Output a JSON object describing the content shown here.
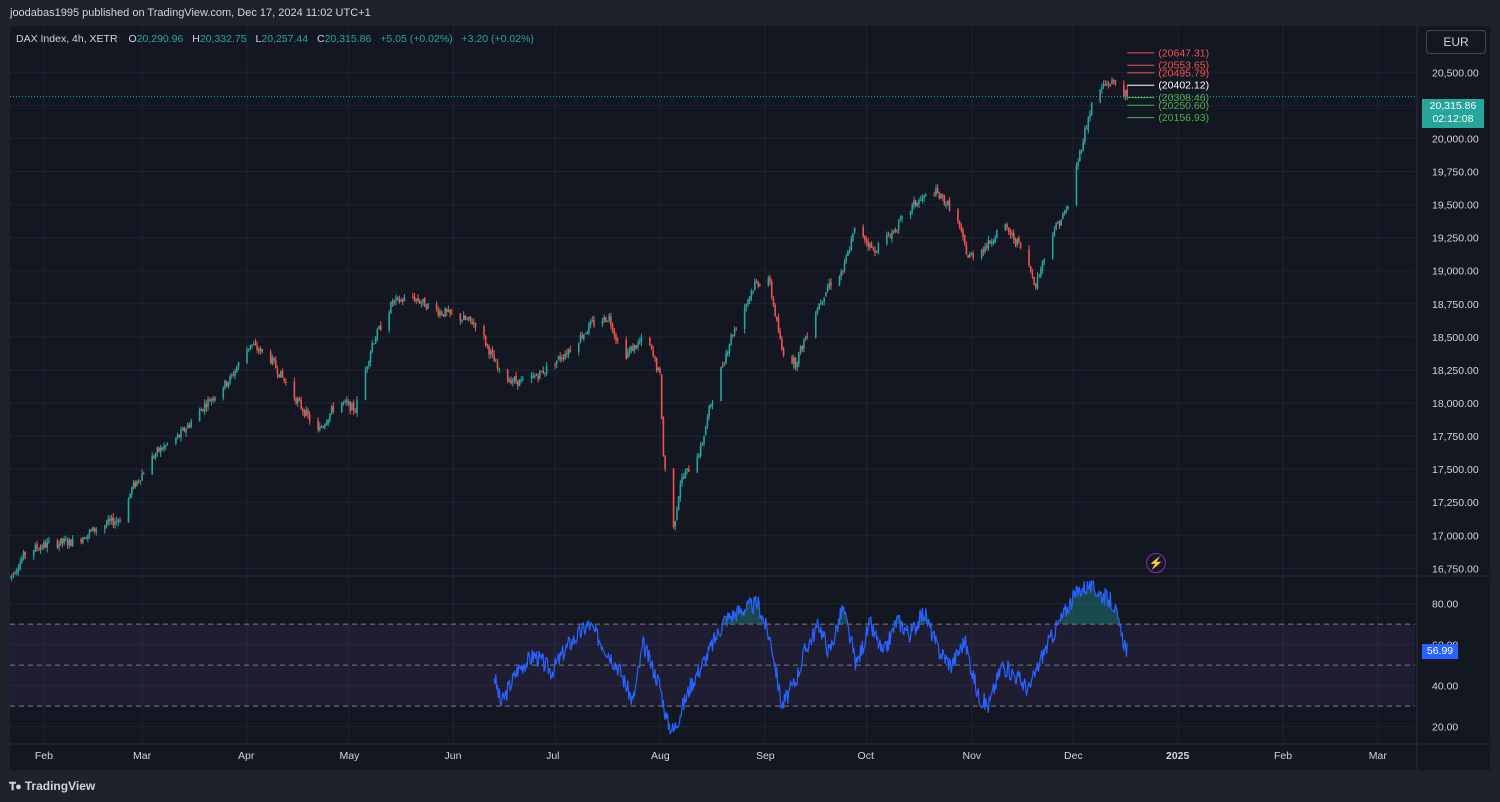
{
  "header": {
    "published": "joodabas1995 published on TradingView.com, Dec 17, 2024 11:02 UTC+1"
  },
  "legend": {
    "symbol": "DAX Index, 4h, XETR",
    "open_label": "O",
    "open": "20,290.96",
    "high_label": "H",
    "high": "20,332.75",
    "low_label": "L",
    "low": "20,257.44",
    "close_label": "C",
    "close": "20,315.86",
    "change": "+5.05 (+0.02%)",
    "change2": "+3.20 (+0.02%)"
  },
  "currency": "EUR",
  "price_tag": {
    "price": "20,315.86",
    "countdown": "02:12:08",
    "color": "#26a69a"
  },
  "rsi_tag": {
    "value": "56.99",
    "color": "#2962ff"
  },
  "alert_icon": "lightning-icon",
  "footer": {
    "logo_text": "TradingView",
    "logo_icon": "tradingview-logo-icon"
  },
  "colors": {
    "up": "#26a69a",
    "down": "#ef5350",
    "rsi_line": "#2962ff",
    "rsi_band": "#7e57c2",
    "bg": "#131722"
  },
  "chart_data": {
    "type": "candlestick",
    "price_axis": {
      "labels": [
        "20,500.00",
        "20,250.00",
        "20,000.00",
        "19,750.00",
        "19,500.00",
        "19,250.00",
        "19,000.00",
        "18,750.00",
        "18,500.00",
        "18,250.00",
        "18,000.00",
        "17,750.00",
        "17,500.00",
        "17,250.00",
        "17,000.00",
        "16,750.00"
      ],
      "values": [
        20500,
        20250,
        20000,
        19750,
        19500,
        19250,
        19000,
        18750,
        18500,
        18250,
        18000,
        17750,
        17500,
        17250,
        17000,
        16750
      ],
      "range": [
        16700,
        20850
      ]
    },
    "time_axis": {
      "labels": [
        "Feb",
        "Mar",
        "Apr",
        "May",
        "Jun",
        "Jul",
        "Aug",
        "Sep",
        "Oct",
        "Nov",
        "Dec",
        "2025",
        "Feb",
        "Mar"
      ],
      "start_date": "2024-01-22",
      "end_date": "2025-03-12",
      "dates": [
        "2024-02-01",
        "2024-03-01",
        "2024-04-01",
        "2024-05-01",
        "2024-06-01",
        "2024-07-01",
        "2024-08-01",
        "2024-09-01",
        "2024-10-01",
        "2024-11-01",
        "2024-12-01",
        "2025-01-01",
        "2025-02-01",
        "2025-03-01"
      ]
    },
    "price_path": [
      [
        "2024-01-22",
        16680
      ],
      [
        "2024-01-27",
        16880
      ],
      [
        "2024-02-03",
        16940
      ],
      [
        "2024-02-10",
        16950
      ],
      [
        "2024-02-17",
        17060
      ],
      [
        "2024-02-24",
        17130
      ],
      [
        "2024-02-27",
        17350
      ],
      [
        "2024-03-05",
        17620
      ],
      [
        "2024-03-12",
        17750
      ],
      [
        "2024-03-20",
        18000
      ],
      [
        "2024-03-27",
        18180
      ],
      [
        "2024-04-02",
        18450
      ],
      [
        "2024-04-08",
        18330
      ],
      [
        "2024-04-15",
        18050
      ],
      [
        "2024-04-22",
        17780
      ],
      [
        "2024-04-28",
        18020
      ],
      [
        "2024-05-03",
        17950
      ],
      [
        "2024-05-08",
        18450
      ],
      [
        "2024-05-14",
        18760
      ],
      [
        "2024-05-20",
        18800
      ],
      [
        "2024-05-27",
        18700
      ],
      [
        "2024-06-03",
        18640
      ],
      [
        "2024-06-08",
        18600
      ],
      [
        "2024-06-15",
        18200
      ],
      [
        "2024-06-22",
        18150
      ],
      [
        "2024-06-28",
        18250
      ],
      [
        "2024-07-05",
        18400
      ],
      [
        "2024-07-12",
        18600
      ],
      [
        "2024-07-17",
        18650
      ],
      [
        "2024-07-21",
        18350
      ],
      [
        "2024-07-28",
        18500
      ],
      [
        "2024-08-01",
        18200
      ],
      [
        "2024-08-02",
        17600
      ],
      [
        "2024-08-05",
        17050
      ],
      [
        "2024-08-07",
        17400
      ],
      [
        "2024-08-13",
        17650
      ],
      [
        "2024-08-16",
        18000
      ],
      [
        "2024-08-22",
        18500
      ],
      [
        "2024-08-29",
        18900
      ],
      [
        "2024-09-02",
        18950
      ],
      [
        "2024-09-06",
        18400
      ],
      [
        "2024-09-10",
        18300
      ],
      [
        "2024-09-16",
        18700
      ],
      [
        "2024-09-20",
        18900
      ],
      [
        "2024-09-24",
        19000
      ],
      [
        "2024-09-28",
        19350
      ],
      [
        "2024-10-03",
        19150
      ],
      [
        "2024-10-09",
        19300
      ],
      [
        "2024-10-15",
        19500
      ],
      [
        "2024-10-21",
        19600
      ],
      [
        "2024-10-27",
        19450
      ],
      [
        "2024-10-31",
        19100
      ],
      [
        "2024-11-06",
        19200
      ],
      [
        "2024-11-10",
        19350
      ],
      [
        "2024-11-15",
        19200
      ],
      [
        "2024-11-20",
        18900
      ],
      [
        "2024-11-25",
        19300
      ],
      [
        "2024-11-29",
        19450
      ],
      [
        "2024-12-04",
        20000
      ],
      [
        "2024-12-07",
        20300
      ],
      [
        "2024-12-10",
        20400
      ],
      [
        "2024-12-13",
        20430
      ],
      [
        "2024-12-16",
        20350
      ],
      [
        "2024-12-17",
        20315
      ]
    ],
    "current_price": 20315.86,
    "pivot_levels": [
      {
        "label": "(20647.31)",
        "value": 20647.31,
        "color": "#ef5350"
      },
      {
        "label": "(20553.65)",
        "value": 20553.65,
        "color": "#ef5350"
      },
      {
        "label": "(20495.79)",
        "value": 20495.79,
        "color": "#ef5350"
      },
      {
        "label": "(20402.12)",
        "value": 20402.12,
        "color": "#ffffff"
      },
      {
        "label": "(20308.46)",
        "value": 20308.46,
        "color": "#4caf50"
      },
      {
        "label": "(20250.60)",
        "value": 20250.6,
        "color": "#4caf50"
      },
      {
        "label": "(20156.93)",
        "value": 20156.93,
        "color": "#4caf50"
      }
    ],
    "rsi": {
      "axis_labels": [
        "80.00",
        "60.00",
        "40.00",
        "20.00"
      ],
      "axis_values": [
        80,
        60,
        40,
        20
      ],
      "range": [
        13,
        93
      ],
      "bands": [
        70,
        50,
        30
      ],
      "start_date": "2024-06-13",
      "path": [
        [
          "2024-06-13",
          45
        ],
        [
          "2024-06-15",
          31
        ],
        [
          "2024-06-20",
          48
        ],
        [
          "2024-06-25",
          55
        ],
        [
          "2024-06-30",
          47
        ],
        [
          "2024-07-05",
          60
        ],
        [
          "2024-07-11",
          70
        ],
        [
          "2024-07-16",
          58
        ],
        [
          "2024-07-20",
          48
        ],
        [
          "2024-07-24",
          32
        ],
        [
          "2024-07-27",
          60
        ],
        [
          "2024-08-01",
          40
        ],
        [
          "2024-08-03",
          23
        ],
        [
          "2024-08-05",
          18
        ],
        [
          "2024-08-10",
          40
        ],
        [
          "2024-08-15",
          55
        ],
        [
          "2024-08-20",
          72
        ],
        [
          "2024-08-25",
          77
        ],
        [
          "2024-08-30",
          80
        ],
        [
          "2024-09-03",
          60
        ],
        [
          "2024-09-06",
          30
        ],
        [
          "2024-09-10",
          42
        ],
        [
          "2024-09-13",
          58
        ],
        [
          "2024-09-17",
          70
        ],
        [
          "2024-09-20",
          56
        ],
        [
          "2024-09-24",
          78
        ],
        [
          "2024-09-28",
          50
        ],
        [
          "2024-10-02",
          70
        ],
        [
          "2024-10-06",
          55
        ],
        [
          "2024-10-10",
          72
        ],
        [
          "2024-10-14",
          65
        ],
        [
          "2024-10-18",
          76
        ],
        [
          "2024-10-22",
          58
        ],
        [
          "2024-10-26",
          50
        ],
        [
          "2024-10-30",
          62
        ],
        [
          "2024-11-03",
          35
        ],
        [
          "2024-11-06",
          30
        ],
        [
          "2024-11-10",
          50
        ],
        [
          "2024-11-14",
          45
        ],
        [
          "2024-11-18",
          38
        ],
        [
          "2024-11-22",
          55
        ],
        [
          "2024-11-26",
          68
        ],
        [
          "2024-11-30",
          80
        ],
        [
          "2024-12-03",
          87
        ],
        [
          "2024-12-06",
          89
        ],
        [
          "2024-12-09",
          85
        ],
        [
          "2024-12-13",
          80
        ],
        [
          "2024-12-15",
          66
        ],
        [
          "2024-12-17",
          57
        ]
      ]
    }
  }
}
